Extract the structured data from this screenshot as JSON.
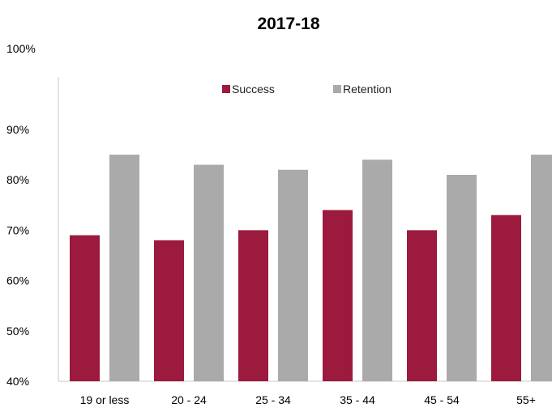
{
  "chart_data": {
    "type": "bar",
    "title": "2017-18",
    "xlabel": "",
    "ylabel": "",
    "categories": [
      "19 or less",
      "20 - 24",
      "25 - 34",
      "35 - 44",
      "45 - 54",
      "55+"
    ],
    "series": [
      {
        "name": "Success",
        "values": [
          69,
          68,
          70,
          74,
          70,
          73
        ],
        "color": "#9b1a3d"
      },
      {
        "name": "Retention",
        "values": [
          85,
          83,
          82,
          84,
          81,
          85
        ],
        "color": "#aaaaaa"
      }
    ],
    "ylim": [
      40,
      100
    ],
    "yticks": [
      "40%",
      "50%",
      "60%",
      "70%",
      "80%",
      "90%",
      "100%"
    ],
    "ytick_values": [
      40,
      50,
      60,
      70,
      80,
      90,
      100
    ],
    "unit": "%",
    "grid": false,
    "legend_position": "top-center"
  }
}
